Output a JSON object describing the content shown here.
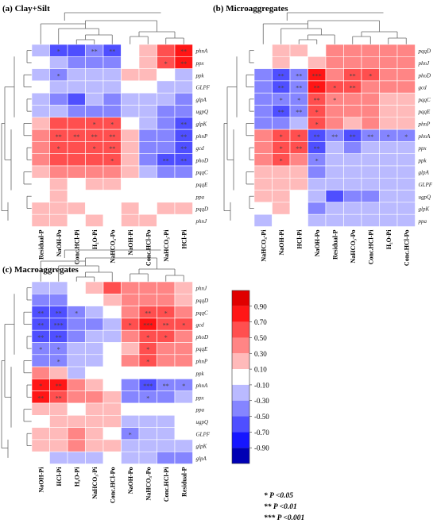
{
  "colors": {
    "scale": [
      "#0000b4",
      "#1616ff",
      "#4f4fff",
      "#8585ff",
      "#babaff",
      "#ffffff",
      "#ffbaba",
      "#ff8585",
      "#ff4f4f",
      "#ff1616",
      "#e00000"
    ],
    "dendrogram": "#666666",
    "border": "#ffffff",
    "star": "#444444"
  },
  "legend": {
    "ticks": [
      "0.90",
      "0.70",
      "0.50",
      "0.30",
      "0.10",
      "-0.10",
      "-0.30",
      "-0.50",
      "-0.70",
      "-0.90"
    ],
    "sig": [
      "* P <0.05",
      "** P <0.01",
      "*** P <0.001"
    ]
  },
  "chart_data": [
    {
      "type": "heatmap",
      "title": "(a) Clay+Silt",
      "columns": [
        "Residual-P",
        "NaOH-Po",
        "Conc.HCl-Pi",
        "H₂O-Pi",
        "NaHCO₃-Po",
        "NaOH-Pi",
        "Conc.HCl-Po",
        "NaHCO₃-Pi",
        "HCl-Pi"
      ],
      "rows": [
        "phnA",
        "ppx",
        "ppk",
        "GLPF",
        "glpA",
        "ugpQ",
        "glpK",
        "phnP",
        "gcd",
        "phoD",
        "pqqC",
        "pqqE",
        "ppa",
        "pqqD",
        "phnJ"
      ],
      "values": [
        [
          -0.2,
          -0.6,
          -0.6,
          -0.5,
          -0.6,
          -0.1,
          0.1,
          0.5,
          0.8
        ],
        [
          0.0,
          -0.3,
          -0.4,
          -0.4,
          -0.4,
          0.0,
          0.2,
          0.6,
          0.8
        ],
        [
          -0.2,
          -0.5,
          -0.3,
          -0.3,
          -0.2,
          0.1,
          0.1,
          -0.1,
          -0.2
        ],
        [
          -0.1,
          -0.3,
          -0.3,
          -0.2,
          -0.3,
          -0.1,
          0.0,
          -0.2,
          -0.3
        ],
        [
          -0.2,
          -0.4,
          -0.6,
          -0.3,
          -0.5,
          -0.3,
          -0.2,
          -0.3,
          -0.4
        ],
        [
          -0.2,
          -0.3,
          -0.4,
          -0.4,
          -0.5,
          -0.3,
          -0.3,
          -0.4,
          -0.5
        ],
        [
          0.2,
          0.5,
          0.5,
          0.6,
          0.6,
          0.0,
          -0.3,
          -0.5,
          -0.7
        ],
        [
          0.3,
          0.6,
          0.5,
          0.5,
          0.6,
          0.1,
          -0.4,
          -0.5,
          -0.7
        ],
        [
          0.3,
          0.5,
          0.5,
          0.6,
          0.6,
          0.1,
          -0.4,
          -0.5,
          -0.7
        ],
        [
          0.3,
          0.5,
          0.5,
          0.5,
          0.5,
          0.2,
          -0.4,
          -0.6,
          -0.7
        ],
        [
          0.2,
          0.4,
          0.4,
          0.4,
          0.4,
          0.1,
          -0.3,
          -0.4,
          -0.5
        ],
        [
          0.0,
          0.1,
          0.0,
          0.1,
          0.1,
          -0.1,
          -0.1,
          -0.1,
          -0.1
        ],
        [
          0.0,
          0.1,
          0.0,
          0.0,
          0.0,
          -0.1,
          -0.1,
          -0.1,
          -0.1
        ],
        [
          0.1,
          0.1,
          0.1,
          0.0,
          0.0,
          0.1,
          0.0,
          0.1,
          0.1
        ],
        [
          0.1,
          0.1,
          0.0,
          0.1,
          0.0,
          0.1,
          0.1,
          0.0,
          0.0
        ]
      ],
      "stars": [
        [
          "",
          "*",
          "",
          "**",
          "**",
          "",
          "",
          "",
          "**"
        ],
        [
          "",
          "",
          "",
          "",
          "",
          "",
          "",
          "*",
          "**"
        ],
        [
          "",
          "*",
          "",
          "",
          "",
          "",
          "",
          "",
          ""
        ],
        [
          "",
          "",
          "",
          "",
          "",
          "",
          "",
          "",
          ""
        ],
        [
          "",
          "",
          "",
          "",
          "",
          "",
          "",
          "",
          ""
        ],
        [
          "",
          "",
          "",
          "",
          "",
          "",
          "",
          "",
          ""
        ],
        [
          "",
          "",
          "",
          "*",
          "*",
          "",
          "",
          "",
          "**"
        ],
        [
          "",
          "**",
          "**",
          "**",
          "**",
          "",
          "",
          "",
          "**"
        ],
        [
          "",
          "*",
          "",
          "*",
          "**",
          "",
          "",
          "",
          "**"
        ],
        [
          "",
          "",
          "",
          "",
          "*",
          "",
          "",
          "**",
          "**"
        ],
        [
          "",
          "",
          "",
          "",
          "",
          "",
          "",
          "",
          ""
        ],
        [
          "",
          "",
          "",
          "",
          "",
          "",
          "",
          "",
          ""
        ],
        [
          "",
          "",
          "",
          "",
          "",
          "",
          "",
          "",
          ""
        ],
        [
          "",
          "",
          "",
          "",
          "",
          "",
          "",
          "",
          ""
        ],
        [
          "",
          "",
          "",
          "",
          "",
          "",
          "",
          "",
          ""
        ]
      ]
    },
    {
      "type": "heatmap",
      "title": "(b) Microaggregates",
      "columns": [
        "NaHCO₃-Pi",
        "NaOH-Pi",
        "HCl-Pi",
        "NaOH-Po",
        "Residual-P",
        "NaHCO₃-Po",
        "Conc.HCl-Pi",
        "H₂O-Pi",
        "Conc.HCl-Po"
      ],
      "rows": [
        "pqqD",
        "phnJ",
        "phoD",
        "gcd",
        "pqqC",
        "pqqE",
        "phnP",
        "phnA",
        "ppx",
        "ppk",
        "glpA",
        "GLPF",
        "ugpQ",
        "glpK",
        "ppa"
      ],
      "values": [
        [
          -0.1,
          0.1,
          0.1,
          0.0,
          0.3,
          0.3,
          0.4,
          0.3,
          0.3
        ],
        [
          -0.1,
          0.1,
          -0.1,
          0.1,
          0.3,
          0.3,
          0.3,
          0.3,
          0.3
        ],
        [
          -0.4,
          -0.6,
          -0.5,
          0.7,
          0.4,
          0.6,
          0.5,
          0.3,
          0.3
        ],
        [
          -0.4,
          -0.6,
          -0.4,
          0.7,
          0.5,
          0.6,
          0.4,
          0.3,
          0.3
        ],
        [
          -0.4,
          -0.5,
          -0.4,
          0.6,
          0.4,
          0.3,
          0.3,
          0.2,
          0.2
        ],
        [
          -0.5,
          -0.6,
          -0.5,
          0.6,
          0.3,
          0.3,
          0.3,
          0.2,
          0.2
        ],
        [
          -0.4,
          -0.4,
          -0.3,
          0.5,
          0.3,
          0.2,
          0.3,
          0.2,
          0.2
        ],
        [
          0.4,
          0.6,
          0.5,
          -0.7,
          -0.5,
          -0.6,
          -0.5,
          -0.4,
          -0.5
        ],
        [
          0.4,
          0.6,
          0.6,
          -0.6,
          -0.3,
          -0.4,
          -0.3,
          -0.3,
          -0.3
        ],
        [
          0.3,
          0.5,
          0.3,
          -0.5,
          -0.2,
          -0.3,
          -0.2,
          -0.2,
          -0.2
        ],
        [
          0.2,
          0.2,
          0.1,
          -0.4,
          -0.3,
          -0.3,
          -0.3,
          -0.3,
          -0.3
        ],
        [
          0.1,
          0.1,
          0.1,
          -0.2,
          -0.3,
          -0.2,
          -0.3,
          -0.2,
          -0.2
        ],
        [
          0.1,
          0.1,
          -0.1,
          -0.3,
          -0.6,
          -0.4,
          -0.4,
          -0.3,
          -0.3
        ],
        [
          -0.1,
          0.1,
          -0.1,
          -0.5,
          -0.3,
          -0.3,
          -0.3,
          -0.2,
          -0.2
        ],
        [
          -0.2,
          -0.1,
          -0.1,
          -0.2,
          -0.2,
          -0.3,
          -0.2,
          -0.2,
          -0.2
        ]
      ],
      "stars": [
        [
          "",
          "",
          "",
          "",
          "",
          "",
          "",
          "",
          ""
        ],
        [
          "",
          "",
          "",
          "",
          "",
          "",
          "",
          "",
          ""
        ],
        [
          "",
          "**",
          "**",
          "***",
          "",
          "**",
          "*",
          "",
          ""
        ],
        [
          "",
          "**",
          "**",
          "**",
          "*",
          "**",
          "",
          "",
          ""
        ],
        [
          "",
          "*",
          "*",
          "**",
          "*",
          "",
          "",
          "",
          ""
        ],
        [
          "",
          "**",
          "**",
          "*",
          "",
          "",
          "",
          "",
          ""
        ],
        [
          "",
          "",
          "",
          "*",
          "",
          "",
          "",
          "",
          ""
        ],
        [
          "",
          "*",
          "*",
          "**",
          "**",
          "**",
          "**",
          "*",
          "*"
        ],
        [
          "",
          "*",
          "**",
          "**",
          "",
          "",
          "",
          "",
          ""
        ],
        [
          "",
          "*",
          "",
          "*",
          "",
          "",
          "",
          "",
          ""
        ],
        [
          "",
          "",
          "",
          "",
          "",
          "",
          "",
          "",
          ""
        ],
        [
          "",
          "",
          "",
          "",
          "",
          "",
          "",
          "",
          ""
        ],
        [
          "",
          "",
          "",
          "",
          "",
          "",
          "",
          "",
          ""
        ],
        [
          "",
          "",
          "",
          "",
          "",
          "",
          "",
          "",
          ""
        ],
        [
          "",
          "",
          "",
          "",
          "",
          "",
          "",
          "",
          ""
        ]
      ]
    },
    {
      "type": "heatmap",
      "title": "(c) Macroaggregates",
      "columns": [
        "NaOH-Pi",
        "HCl-Pi",
        "H₂O-Pi",
        "NaHCO₃-Pi",
        "Conc.HCl-Po",
        "NaOH-Po",
        "NaHCO₃-Po",
        "Conc.HCl-Pi",
        "Residual-P"
      ],
      "rows": [
        "phnJ",
        "pqqD",
        "pqqC",
        "gcd",
        "phoD",
        "pqqE",
        "phnP",
        "ppk",
        "phnA",
        "ppx",
        "ppa",
        "ugpQ",
        "GLPF",
        "glpK",
        "glpA"
      ],
      "values": [
        [
          -0.3,
          -0.3,
          0.0,
          0.2,
          0.5,
          0.3,
          0.3,
          0.3,
          0.2
        ],
        [
          -0.4,
          -0.4,
          -0.1,
          -0.1,
          0.1,
          0.3,
          0.3,
          0.3,
          0.2
        ],
        [
          -0.7,
          -0.6,
          -0.4,
          -0.3,
          -0.1,
          0.3,
          0.6,
          0.5,
          0.3
        ],
        [
          -0.7,
          -0.7,
          -0.5,
          -0.4,
          -0.2,
          0.6,
          0.7,
          0.6,
          0.5
        ],
        [
          -0.7,
          -0.6,
          -0.4,
          -0.3,
          -0.2,
          0.3,
          0.6,
          0.5,
          0.4
        ],
        [
          -0.5,
          -0.5,
          -0.3,
          -0.3,
          -0.1,
          0.2,
          0.5,
          0.4,
          0.3
        ],
        [
          -0.5,
          -0.4,
          -0.3,
          -0.2,
          -0.1,
          0.3,
          0.5,
          0.4,
          0.4
        ],
        [
          0.3,
          0.1,
          -0.2,
          0.0,
          -0.1,
          0.0,
          -0.1,
          -0.1,
          -0.1
        ],
        [
          0.7,
          0.7,
          0.3,
          0.2,
          0.0,
          -0.5,
          -0.6,
          -0.5,
          -0.4
        ],
        [
          0.7,
          0.6,
          0.4,
          0.3,
          0.1,
          -0.4,
          -0.5,
          -0.4,
          -0.3
        ],
        [
          0.1,
          0.1,
          0.0,
          0.1,
          0.1,
          0.0,
          -0.1,
          -0.1,
          0.0
        ],
        [
          0.0,
          0.1,
          0.1,
          0.2,
          0.1,
          -0.2,
          -0.2,
          -0.2,
          -0.1
        ],
        [
          0.1,
          0.2,
          0.3,
          0.2,
          0.0,
          -0.5,
          -0.3,
          -0.2,
          -0.1
        ],
        [
          0.2,
          0.2,
          0.3,
          0.2,
          0.1,
          -0.3,
          -0.3,
          -0.3,
          -0.2
        ],
        [
          -0.1,
          -0.2,
          -0.3,
          -0.2,
          -0.1,
          -0.3,
          -0.3,
          -0.4,
          -0.4
        ]
      ],
      "stars": [
        [
          "",
          "",
          "",
          "",
          "",
          "",
          "",
          "",
          ""
        ],
        [
          "",
          "",
          "",
          "",
          "",
          "",
          "",
          "",
          ""
        ],
        [
          "**",
          "**",
          "*",
          "",
          "",
          "",
          "**",
          "*",
          ""
        ],
        [
          "**",
          "***",
          "",
          "",
          "",
          "*",
          "***",
          "**",
          "*"
        ],
        [
          "**",
          "**",
          "",
          "",
          "",
          "",
          "*",
          "*",
          ""
        ],
        [
          "*",
          "*",
          "",
          "",
          "",
          "",
          "*",
          "",
          ""
        ],
        [
          "",
          "*",
          "",
          "",
          "",
          "",
          "*",
          "",
          ""
        ],
        [
          "",
          "",
          "",
          "",
          "",
          "",
          "",
          "",
          ""
        ],
        [
          "*",
          "**",
          "",
          "",
          "",
          "",
          "***",
          "**",
          "*"
        ],
        [
          "**",
          "**",
          "",
          "",
          "",
          "",
          "*",
          "",
          ""
        ],
        [
          "",
          "",
          "",
          "",
          "",
          "",
          "",
          "",
          ""
        ],
        [
          "",
          "",
          "",
          "",
          "",
          "",
          "",
          "",
          ""
        ],
        [
          "",
          "",
          "",
          "",
          "",
          "*",
          "",
          "",
          ""
        ],
        [
          "",
          "",
          "",
          "",
          "",
          "",
          "",
          "",
          ""
        ],
        [
          "",
          "",
          "",
          "",
          "",
          "",
          "",
          "",
          ""
        ]
      ]
    }
  ]
}
